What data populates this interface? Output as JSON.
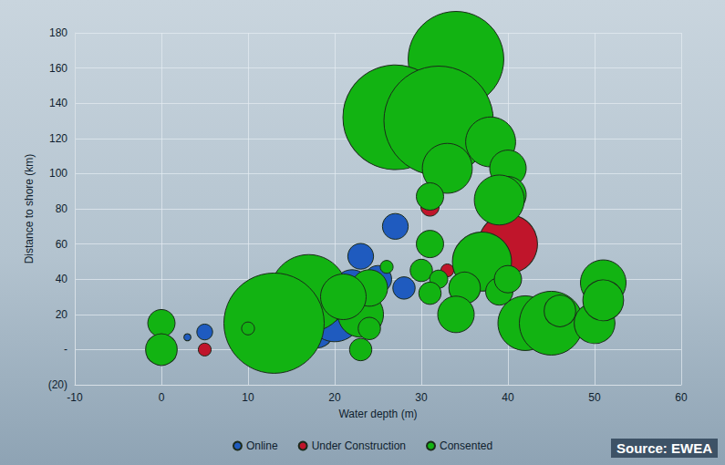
{
  "chart_data": {
    "type": "scatter",
    "source": "Source: EWEA",
    "x_label": "Water depth (m)",
    "y_label": "Distance to shore (km)",
    "xlim": [
      -10,
      60
    ],
    "xticks": [
      -10,
      0,
      10,
      20,
      30,
      40,
      50,
      60
    ],
    "ylim": [
      -20,
      180
    ],
    "yticks": [
      {
        "value": -20,
        "label": "(20)"
      },
      {
        "value": 0,
        "label": "-"
      },
      20,
      40,
      60,
      80,
      100,
      120,
      140,
      160,
      180
    ],
    "grid": true,
    "legend": "bottom",
    "marker": "circle",
    "series": [
      {
        "name": "Online",
        "color": "#1f5bbf",
        "x": [
          27,
          23,
          18,
          20,
          22,
          25,
          19,
          5,
          3,
          9,
          15,
          28,
          35
        ],
        "y": [
          70,
          53,
          10,
          20,
          35,
          40,
          25,
          10,
          7,
          5,
          8,
          35,
          33
        ],
        "sizes": [
          80,
          80,
          120,
          360,
          160,
          90,
          160,
          30,
          6,
          40,
          40,
          60,
          40
        ]
      },
      {
        "name": "Under Construction",
        "color": "#c0152b",
        "x": [
          40,
          31,
          5,
          33
        ],
        "y": [
          60,
          81,
          0,
          45
        ],
        "sizes": [
          420,
          40,
          20,
          20
        ]
      },
      {
        "name": "Consented",
        "color": "#12b312",
        "x": [
          34,
          27,
          32,
          33,
          31,
          38,
          40,
          40,
          39,
          37,
          35,
          34,
          39,
          40,
          31,
          30,
          32,
          31,
          17,
          13,
          23,
          24,
          24,
          23,
          26,
          21,
          42,
          45,
          46,
          50,
          51,
          51,
          0,
          0,
          10
        ],
        "y": [
          165,
          132,
          130,
          103,
          87,
          118,
          103,
          88,
          85,
          50,
          35,
          20,
          33,
          40,
          60,
          45,
          40,
          32,
          32,
          15,
          20,
          35,
          12,
          0,
          47,
          30,
          15,
          15,
          22,
          15,
          38,
          28,
          15,
          0,
          12
        ],
        "sizes": [
          1100,
          1320,
          1440,
          300,
          90,
          300,
          160,
          160,
          300,
          420,
          120,
          160,
          90,
          90,
          90,
          60,
          40,
          60,
          720,
          1210,
          250,
          160,
          60,
          60,
          20,
          250,
          360,
          490,
          120,
          200,
          250,
          200,
          90,
          120,
          20
        ]
      }
    ]
  }
}
